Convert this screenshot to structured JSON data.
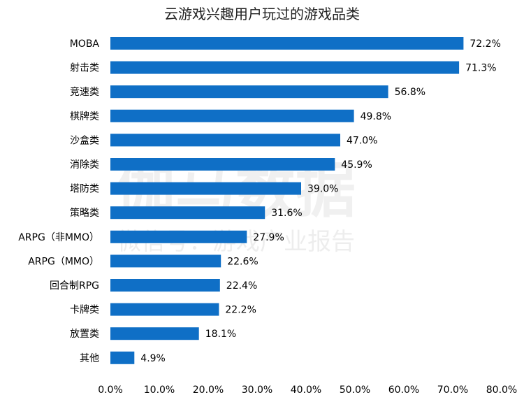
{
  "chart_data": {
    "type": "bar",
    "orientation": "horizontal",
    "title": "云游戏兴趣用户玩过的游戏品类",
    "categories": [
      "MOBA",
      "射击类",
      "竞速类",
      "棋牌类",
      "沙盒类",
      "消除类",
      "塔防类",
      "策略类",
      "ARPG（非MMO）",
      "ARPG（MMO）",
      "回合制RPG",
      "卡牌类",
      "放置类",
      "其他"
    ],
    "values": [
      72.2,
      71.3,
      56.8,
      49.8,
      47.0,
      45.9,
      39.0,
      31.6,
      27.9,
      22.6,
      22.4,
      22.2,
      18.1,
      4.9
    ],
    "value_labels": [
      "72.2%",
      "71.3%",
      "56.8%",
      "49.8%",
      "47.0%",
      "45.9%",
      "39.0%",
      "31.6%",
      "27.9%",
      "22.6%",
      "22.4%",
      "22.2%",
      "18.1%",
      "4.9%"
    ],
    "xlim": [
      0,
      80
    ],
    "xticks": [
      "0.0%",
      "10.0%",
      "20.0%",
      "30.0%",
      "40.0%",
      "50.0%",
      "60.0%",
      "70.0%",
      "80.0%"
    ],
    "grid": false,
    "legend": "none",
    "bar_color": "#0F6FC6"
  },
  "watermark": {
    "main": "伽马数据",
    "sub": "微信号：游戏产业报告"
  }
}
